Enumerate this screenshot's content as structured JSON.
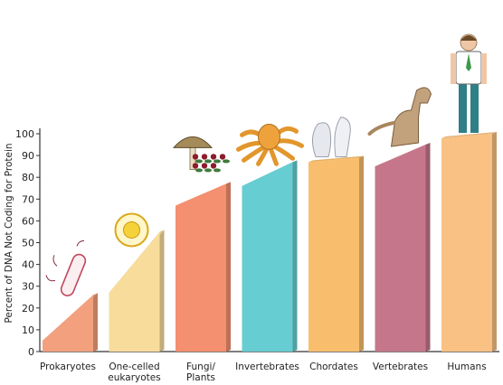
{
  "chart_data": {
    "type": "bar",
    "title": "",
    "xlabel": "",
    "ylabel": "Percent of DNA Not Coding for Protein",
    "ylim": [
      0,
      100
    ],
    "yticks": [
      0,
      10,
      20,
      30,
      40,
      50,
      60,
      70,
      80,
      90,
      100
    ],
    "grid": false,
    "categories": [
      [
        "Prokaryotes"
      ],
      [
        "One-celled",
        "eukaryotes"
      ],
      [
        "Fungi/",
        "Plants"
      ],
      [
        "Invertebrates"
      ],
      [
        "Chordates"
      ],
      [
        "Vertebrates"
      ],
      [
        "Humans"
      ]
    ],
    "ranges": [
      [
        5,
        26
      ],
      [
        27,
        55
      ],
      [
        67,
        77
      ],
      [
        76,
        87
      ],
      [
        87,
        89
      ],
      [
        85,
        95
      ],
      [
        98,
        100
      ]
    ],
    "colors": [
      "#f3a07e",
      "#f7dc9c",
      "#f48f6f",
      "#66cdd2",
      "#f9be6d",
      "#c6768a",
      "#f9c183"
    ],
    "icons": [
      "bacterium-icon",
      "cell-icon",
      "mushroom-plant-icon",
      "octopus-icon",
      "sea-squirt-icon",
      "dog-icon",
      "human-icon"
    ]
  }
}
